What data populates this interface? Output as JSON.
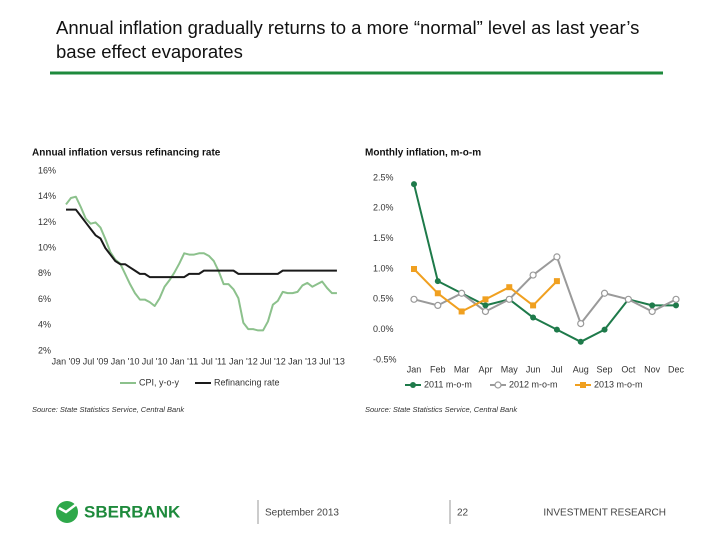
{
  "slide_title": "Annual inflation gradually returns to a more “normal” level as last year’s base effect evaporates",
  "footer": {
    "brand": "SBERBANK",
    "date": "September 2013",
    "page": "22",
    "department": "INVESTMENT RESEARCH"
  },
  "chart_data": [
    {
      "type": "line",
      "title": "Annual inflation versus refinancing rate",
      "source": "Source: State Statistics Service, Central Bank",
      "categories": [
        "Jan '09",
        null,
        null,
        null,
        null,
        null,
        "Jul '09",
        null,
        null,
        null,
        null,
        null,
        "Jan '10",
        null,
        null,
        null,
        null,
        null,
        "Jul '10",
        null,
        null,
        null,
        null,
        null,
        "Jan '11",
        null,
        null,
        null,
        null,
        null,
        "Jul '11",
        null,
        null,
        null,
        null,
        null,
        "Jan '12",
        null,
        null,
        null,
        null,
        null,
        "Jul '12",
        null,
        null,
        null,
        null,
        null,
        "Jan '13",
        null,
        null,
        null,
        null,
        null,
        "Jul '13",
        null
      ],
      "series": [
        {
          "name": "CPI, y-o-y",
          "color": "#8cc18c",
          "marker": "none",
          "values": [
            13.4,
            13.9,
            14.0,
            13.2,
            12.3,
            11.9,
            12.0,
            11.6,
            10.7,
            9.7,
            9.1,
            8.8,
            8.0,
            7.2,
            6.5,
            6.0,
            6.0,
            5.8,
            5.5,
            6.1,
            7.0,
            7.5,
            8.1,
            8.8,
            9.6,
            9.5,
            9.5,
            9.6,
            9.6,
            9.4,
            9.0,
            8.2,
            7.2,
            7.2,
            6.8,
            6.1,
            4.2,
            3.7,
            3.7,
            3.6,
            3.6,
            4.3,
            5.6,
            5.9,
            6.6,
            6.5,
            6.5,
            6.6,
            7.1,
            7.3,
            7.0,
            7.2,
            7.4,
            6.9,
            6.5,
            6.5
          ]
        },
        {
          "name": "Refinancing rate",
          "color": "#1a1a1a",
          "marker": "none",
          "values": [
            13,
            13,
            13,
            12.5,
            12,
            11.5,
            11,
            10.75,
            10,
            9.5,
            9,
            8.75,
            8.75,
            8.5,
            8.25,
            8,
            8,
            7.75,
            7.75,
            7.75,
            7.75,
            7.75,
            7.75,
            7.75,
            7.75,
            8,
            8,
            8,
            8.25,
            8.25,
            8.25,
            8.25,
            8.25,
            8.25,
            8.25,
            8,
            8,
            8,
            8,
            8,
            8,
            8,
            8,
            8,
            8.25,
            8.25,
            8.25,
            8.25,
            8.25,
            8.25,
            8.25,
            8.25,
            8.25,
            8.25,
            8.25,
            8.25
          ]
        }
      ],
      "ylim": [
        2,
        16
      ],
      "yticks": [
        {
          "value": 2,
          "label": "2%"
        },
        {
          "value": 4,
          "label": "4%"
        },
        {
          "value": 6,
          "label": "6%"
        },
        {
          "value": 8,
          "label": "8%"
        },
        {
          "value": 10,
          "label": "10%"
        },
        {
          "value": 12,
          "label": "12%"
        },
        {
          "value": 14,
          "label": "14%"
        },
        {
          "value": 16,
          "label": "16%"
        }
      ],
      "grid": false
    },
    {
      "type": "line",
      "title": "Monthly inflation, m-o-m",
      "source": "Source: State Statistics Service, Central Bank",
      "categories": [
        "Jan",
        "Feb",
        "Mar",
        "Apr",
        "May",
        "Jun",
        "Jul",
        "Aug",
        "Sep",
        "Oct",
        "Nov",
        "Dec"
      ],
      "series": [
        {
          "name": "2011 m-o-m",
          "color": "#1e7a4a",
          "marker": "circle",
          "values": [
            2.4,
            0.8,
            0.6,
            0.4,
            0.5,
            0.2,
            0.0,
            -0.2,
            0.0,
            0.5,
            0.4,
            0.4
          ]
        },
        {
          "name": "2012 m-o-m",
          "color": "#9a9a9a",
          "marker": "open-circle",
          "values": [
            0.5,
            0.4,
            0.6,
            0.3,
            0.5,
            0.9,
            1.2,
            0.1,
            0.6,
            0.5,
            0.3,
            0.5
          ]
        },
        {
          "name": "2013 m-o-m",
          "color": "#f0a020",
          "marker": "square",
          "values": [
            1.0,
            0.6,
            0.3,
            0.5,
            0.7,
            0.4,
            0.8,
            null,
            null,
            null,
            null,
            null
          ]
        }
      ],
      "ylim": [
        -0.5,
        2.5
      ],
      "yticks": [
        {
          "value": -0.5,
          "label": "-0.5%"
        },
        {
          "value": 0,
          "label": "0.0%"
        },
        {
          "value": 0.5,
          "label": "0.5%"
        },
        {
          "value": 1,
          "label": "1.0%"
        },
        {
          "value": 1.5,
          "label": "1.5%"
        },
        {
          "value": 2,
          "label": "2.0%"
        },
        {
          "value": 2.5,
          "label": "2.5%"
        }
      ],
      "grid": false
    }
  ]
}
